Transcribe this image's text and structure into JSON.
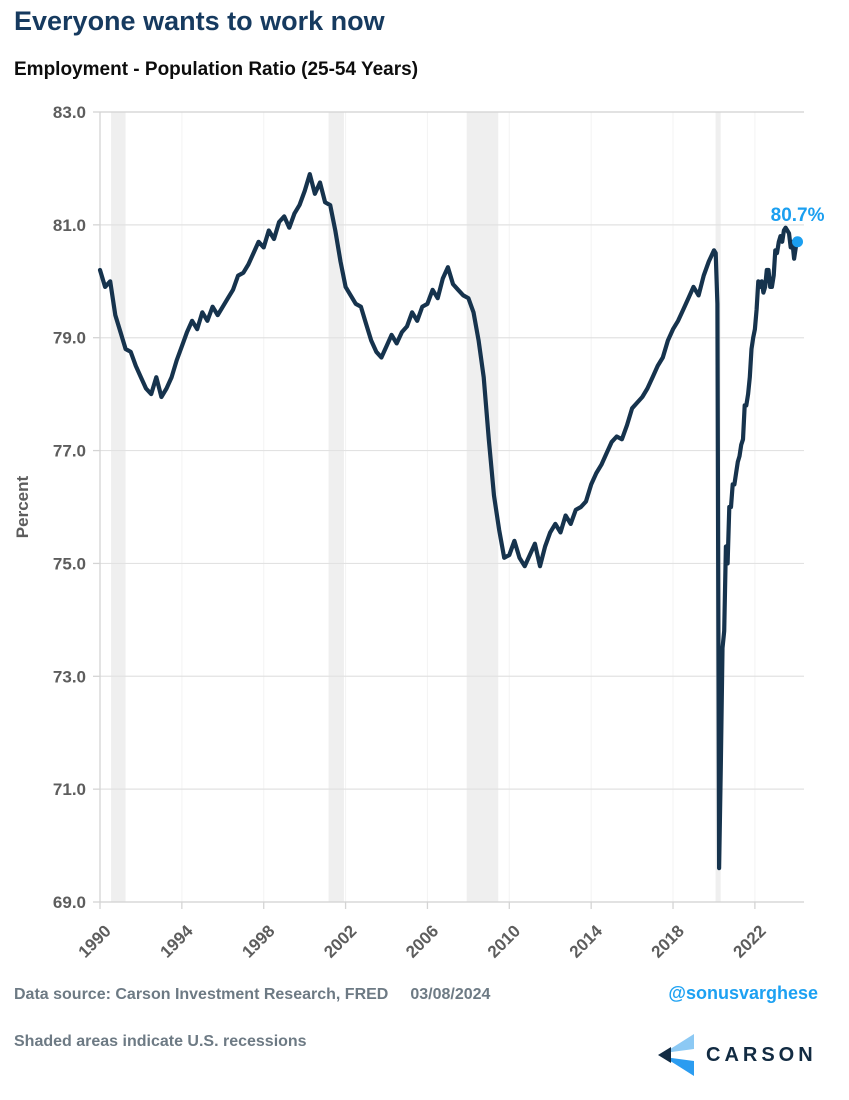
{
  "header": {
    "title": "Everyone wants to work now",
    "subtitle": "Employment - Population Ratio (25-54 Years)"
  },
  "footer": {
    "data_source": "Data source: Carson Investment Research, FRED",
    "date": "03/08/2024",
    "social_handle": "@sonusvarghese",
    "recession_note": "Shaded areas indicate U.S. recessions"
  },
  "logo": {
    "wordmark": "CARSON"
  },
  "colors": {
    "title_navy": "#163a5f",
    "line_navy": "#16334d",
    "accent_blue": "#1b9ff0",
    "handle_blue": "#1da1f2",
    "tick_text": "#5d5d5d",
    "footer_gray": "#6d7a84",
    "gridline": "#e2e2e2",
    "faint_vgrid": "#f3f3f3",
    "axis_line": "#d4d4d4",
    "recession_band": "#efefef",
    "logo_light_blue": "#8cc9f4",
    "logo_bright_blue": "#2b9cf0",
    "logo_navy": "#132c44"
  },
  "chart_data": {
    "type": "line",
    "title": "Employment - Population Ratio (25-54 Years)",
    "xlabel": "",
    "ylabel": "Percent",
    "ylim": [
      69.0,
      83.0
    ],
    "xlim": [
      1990,
      2024.4
    ],
    "yticks": [
      69.0,
      71.0,
      73.0,
      75.0,
      77.0,
      79.0,
      81.0,
      83.0
    ],
    "xticks": [
      1990,
      1994,
      1998,
      2002,
      2006,
      2010,
      2014,
      2018,
      2022
    ],
    "grid": "horizontal",
    "legend": "none",
    "recessions": [
      [
        1990.54,
        1991.25
      ],
      [
        2001.17,
        2001.92
      ],
      [
        2007.92,
        2009.46
      ],
      [
        2020.08,
        2020.33
      ]
    ],
    "last_point": {
      "x": 2024.083,
      "y": 80.7,
      "label": "80.7%"
    },
    "series": [
      {
        "name": "Employment-Population Ratio (25-54 Years), Percent",
        "points": [
          [
            1990.0,
            80.2
          ],
          [
            1990.25,
            79.9
          ],
          [
            1990.5,
            80.0
          ],
          [
            1990.75,
            79.4
          ],
          [
            1991.0,
            79.1
          ],
          [
            1991.25,
            78.8
          ],
          [
            1991.5,
            78.75
          ],
          [
            1991.75,
            78.5
          ],
          [
            1992.0,
            78.3
          ],
          [
            1992.25,
            78.1
          ],
          [
            1992.5,
            78.0
          ],
          [
            1992.75,
            78.3
          ],
          [
            1993.0,
            77.95
          ],
          [
            1993.25,
            78.1
          ],
          [
            1993.5,
            78.3
          ],
          [
            1993.75,
            78.6
          ],
          [
            1994.0,
            78.85
          ],
          [
            1994.25,
            79.1
          ],
          [
            1994.5,
            79.3
          ],
          [
            1994.75,
            79.15
          ],
          [
            1995.0,
            79.45
          ],
          [
            1995.25,
            79.3
          ],
          [
            1995.5,
            79.55
          ],
          [
            1995.75,
            79.4
          ],
          [
            1996.0,
            79.55
          ],
          [
            1996.25,
            79.7
          ],
          [
            1996.5,
            79.85
          ],
          [
            1996.75,
            80.1
          ],
          [
            1997.0,
            80.15
          ],
          [
            1997.25,
            80.3
          ],
          [
            1997.5,
            80.5
          ],
          [
            1997.75,
            80.7
          ],
          [
            1998.0,
            80.6
          ],
          [
            1998.25,
            80.9
          ],
          [
            1998.5,
            80.75
          ],
          [
            1998.75,
            81.05
          ],
          [
            1999.0,
            81.15
          ],
          [
            1999.25,
            80.95
          ],
          [
            1999.5,
            81.2
          ],
          [
            1999.75,
            81.35
          ],
          [
            2000.0,
            81.6
          ],
          [
            2000.25,
            81.9
          ],
          [
            2000.5,
            81.55
          ],
          [
            2000.75,
            81.75
          ],
          [
            2001.0,
            81.4
          ],
          [
            2001.25,
            81.35
          ],
          [
            2001.5,
            80.9
          ],
          [
            2001.75,
            80.35
          ],
          [
            2002.0,
            79.9
          ],
          [
            2002.25,
            79.75
          ],
          [
            2002.5,
            79.6
          ],
          [
            2002.75,
            79.55
          ],
          [
            2003.0,
            79.25
          ],
          [
            2003.25,
            78.95
          ],
          [
            2003.5,
            78.75
          ],
          [
            2003.75,
            78.65
          ],
          [
            2004.0,
            78.85
          ],
          [
            2004.25,
            79.05
          ],
          [
            2004.5,
            78.9
          ],
          [
            2004.75,
            79.1
          ],
          [
            2005.0,
            79.2
          ],
          [
            2005.25,
            79.45
          ],
          [
            2005.5,
            79.3
          ],
          [
            2005.75,
            79.55
          ],
          [
            2006.0,
            79.6
          ],
          [
            2006.25,
            79.85
          ],
          [
            2006.5,
            79.7
          ],
          [
            2006.75,
            80.05
          ],
          [
            2007.0,
            80.25
          ],
          [
            2007.25,
            79.95
          ],
          [
            2007.5,
            79.85
          ],
          [
            2007.75,
            79.75
          ],
          [
            2008.0,
            79.7
          ],
          [
            2008.25,
            79.45
          ],
          [
            2008.5,
            78.95
          ],
          [
            2008.75,
            78.3
          ],
          [
            2009.0,
            77.2
          ],
          [
            2009.25,
            76.2
          ],
          [
            2009.5,
            75.6
          ],
          [
            2009.75,
            75.1
          ],
          [
            2010.0,
            75.15
          ],
          [
            2010.25,
            75.4
          ],
          [
            2010.5,
            75.1
          ],
          [
            2010.75,
            74.95
          ],
          [
            2011.0,
            75.15
          ],
          [
            2011.25,
            75.35
          ],
          [
            2011.5,
            74.95
          ],
          [
            2011.75,
            75.3
          ],
          [
            2012.0,
            75.55
          ],
          [
            2012.25,
            75.7
          ],
          [
            2012.5,
            75.55
          ],
          [
            2012.75,
            75.85
          ],
          [
            2013.0,
            75.7
          ],
          [
            2013.25,
            75.95
          ],
          [
            2013.5,
            76.0
          ],
          [
            2013.75,
            76.1
          ],
          [
            2014.0,
            76.4
          ],
          [
            2014.25,
            76.6
          ],
          [
            2014.5,
            76.75
          ],
          [
            2014.75,
            76.95
          ],
          [
            2015.0,
            77.15
          ],
          [
            2015.25,
            77.25
          ],
          [
            2015.5,
            77.2
          ],
          [
            2015.75,
            77.45
          ],
          [
            2016.0,
            77.75
          ],
          [
            2016.25,
            77.85
          ],
          [
            2016.5,
            77.95
          ],
          [
            2016.75,
            78.1
          ],
          [
            2017.0,
            78.3
          ],
          [
            2017.25,
            78.5
          ],
          [
            2017.5,
            78.65
          ],
          [
            2017.75,
            78.95
          ],
          [
            2018.0,
            79.15
          ],
          [
            2018.25,
            79.3
          ],
          [
            2018.5,
            79.5
          ],
          [
            2018.75,
            79.7
          ],
          [
            2019.0,
            79.9
          ],
          [
            2019.25,
            79.75
          ],
          [
            2019.5,
            80.1
          ],
          [
            2019.75,
            80.35
          ],
          [
            2020.0,
            80.55
          ],
          [
            2020.083,
            80.5
          ],
          [
            2020.167,
            79.6
          ],
          [
            2020.25,
            69.6
          ],
          [
            2020.333,
            71.4
          ],
          [
            2020.417,
            73.5
          ],
          [
            2020.5,
            73.8
          ],
          [
            2020.583,
            75.3
          ],
          [
            2020.667,
            75.0
          ],
          [
            2020.75,
            76.0
          ],
          [
            2020.833,
            76.0
          ],
          [
            2020.917,
            76.4
          ],
          [
            2021.0,
            76.4
          ],
          [
            2021.083,
            76.6
          ],
          [
            2021.167,
            76.8
          ],
          [
            2021.25,
            76.9
          ],
          [
            2021.333,
            77.1
          ],
          [
            2021.417,
            77.2
          ],
          [
            2021.5,
            77.8
          ],
          [
            2021.583,
            77.8
          ],
          [
            2021.667,
            78.0
          ],
          [
            2021.75,
            78.3
          ],
          [
            2021.833,
            78.8
          ],
          [
            2021.917,
            79.0
          ],
          [
            2022.0,
            79.15
          ],
          [
            2022.083,
            79.5
          ],
          [
            2022.167,
            80.0
          ],
          [
            2022.25,
            79.9
          ],
          [
            2022.333,
            80.0
          ],
          [
            2022.417,
            79.8
          ],
          [
            2022.5,
            79.9
          ],
          [
            2022.583,
            80.2
          ],
          [
            2022.667,
            80.2
          ],
          [
            2022.75,
            79.9
          ],
          [
            2022.833,
            79.9
          ],
          [
            2022.917,
            80.1
          ],
          [
            2023.0,
            80.55
          ],
          [
            2023.083,
            80.5
          ],
          [
            2023.167,
            80.7
          ],
          [
            2023.25,
            80.8
          ],
          [
            2023.333,
            80.7
          ],
          [
            2023.417,
            80.9
          ],
          [
            2023.5,
            80.95
          ],
          [
            2023.583,
            80.9
          ],
          [
            2023.667,
            80.85
          ],
          [
            2023.75,
            80.6
          ],
          [
            2023.833,
            80.7
          ],
          [
            2023.917,
            80.4
          ],
          [
            2024.0,
            80.6
          ],
          [
            2024.083,
            80.7
          ]
        ]
      }
    ]
  }
}
